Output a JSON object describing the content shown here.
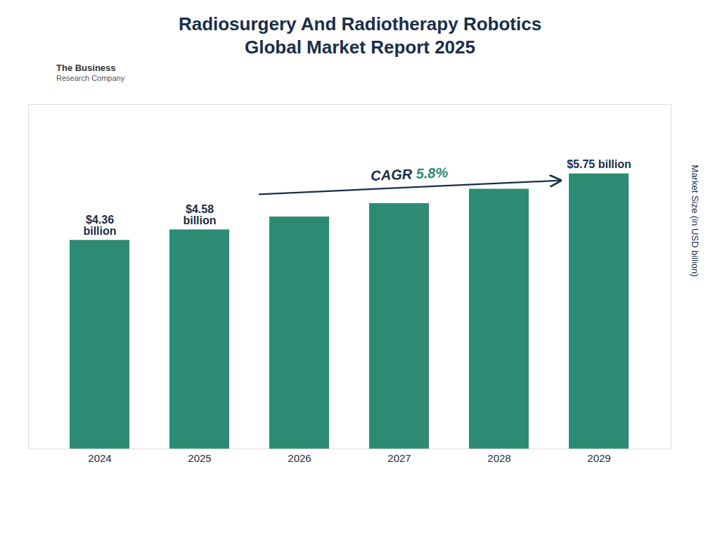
{
  "chart_data": {
    "type": "bar",
    "title": "Radiosurgery And Radiotherapy Robotics\nGlobal Market Report 2025",
    "categories": [
      "2024",
      "2025",
      "2026",
      "2027",
      "2028",
      "2029"
    ],
    "values": [
      4.36,
      4.58,
      4.85,
      5.13,
      5.43,
      5.75
    ],
    "color": "#2d8b73",
    "ylabel": "Market Size (in USD billion)",
    "ylim": [
      0,
      7.2
    ],
    "tick_labels": "x",
    "grid": false,
    "data_labels": true,
    "value_labels": [
      "$4.36\nbillion",
      "$4.58\nbillion",
      null,
      null,
      null,
      "$5.75 billion"
    ],
    "annotations": [
      "CAGR 5.8%",
      "The Business",
      "Research Company"
    ]
  }
}
